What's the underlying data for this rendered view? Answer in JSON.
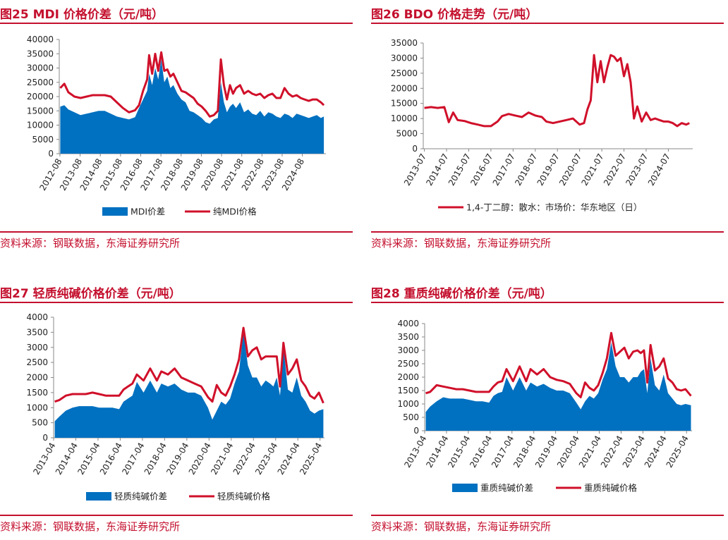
{
  "panels": [
    {
      "id": "p25",
      "title": "图25  MDI 价格价差（元/吨）",
      "source": "资料来源：钢联数据，东海证券研究所"
    },
    {
      "id": "p26",
      "title": "图26  BDO 价格走势（元/吨）",
      "source": "资料来源：钢联数据，东海证券研究所"
    },
    {
      "id": "p27",
      "title": "图27  轻质纯碱价格价差（元/吨）",
      "source": "资料来源：钢联数据，东海证券研究所"
    },
    {
      "id": "p28",
      "title": "图28  重质纯碱价格价差（元/吨）",
      "source": "资料来源：钢联数据，东海证券研究所"
    }
  ],
  "colors": {
    "area": "#0070c0",
    "line": "#d0102a",
    "title": "#c4102e",
    "axis": "#888888"
  },
  "chart_data": [
    {
      "type": "line",
      "title": "图25  MDI 价格价差（元/吨）",
      "x_range": [
        2012.55,
        2025.75
      ],
      "ylim": [
        0,
        40000
      ],
      "yticks": [
        0,
        5000,
        10000,
        15000,
        20000,
        25000,
        30000,
        35000,
        40000
      ],
      "xticks": [
        "2012-08",
        "2013-08",
        "2014-08",
        "2015-08",
        "2016-08",
        "2017-08",
        "2018-08",
        "2019-08",
        "2020-08",
        "2021-08",
        "2022-08",
        "2023-08",
        "2024-08"
      ],
      "x": [
        2012.6,
        2012.8,
        2013.0,
        2013.3,
        2013.6,
        2013.9,
        2014.2,
        2014.5,
        2014.8,
        2015.1,
        2015.4,
        2015.7,
        2016.0,
        2016.3,
        2016.5,
        2016.7,
        2016.9,
        2017.0,
        2017.15,
        2017.3,
        2017.45,
        2017.6,
        2017.75,
        2017.9,
        2018.05,
        2018.2,
        2018.4,
        2018.6,
        2018.8,
        2019.0,
        2019.2,
        2019.4,
        2019.6,
        2019.8,
        2020.0,
        2020.2,
        2020.4,
        2020.55,
        2020.7,
        2020.85,
        2021.0,
        2021.15,
        2021.3,
        2021.5,
        2021.7,
        2021.9,
        2022.1,
        2022.3,
        2022.5,
        2022.7,
        2022.9,
        2023.1,
        2023.3,
        2023.5,
        2023.7,
        2023.9,
        2024.1,
        2024.3,
        2024.5,
        2024.7,
        2024.9,
        2025.1,
        2025.3,
        2025.5,
        2025.65
      ],
      "legend": "bottom",
      "series": [
        {
          "name": "MDI价差",
          "type": "area",
          "values": [
            16500,
            17000,
            15500,
            14500,
            13500,
            14000,
            14500,
            15000,
            15000,
            14000,
            13000,
            12500,
            12000,
            12800,
            16000,
            19000,
            22000,
            28000,
            24000,
            30000,
            26000,
            33000,
            25000,
            27000,
            23000,
            24000,
            21000,
            19000,
            18000,
            15000,
            14500,
            13500,
            12500,
            11000,
            10500,
            12000,
            12500,
            25000,
            18000,
            14500,
            16500,
            17500,
            16000,
            18000,
            14500,
            15500,
            14000,
            13500,
            15000,
            13000,
            14500,
            14000,
            13000,
            12500,
            14000,
            13500,
            12500,
            14000,
            13500,
            13000,
            12500,
            13000,
            13500,
            12500,
            13000
          ]
        },
        {
          "name": "纯MDI价格",
          "type": "line",
          "values": [
            23000,
            24500,
            21500,
            20000,
            19500,
            20000,
            20500,
            20500,
            20500,
            20000,
            18000,
            16000,
            14500,
            15200,
            17000,
            22000,
            26000,
            34500,
            28000,
            35000,
            29000,
            35500,
            29000,
            29500,
            27000,
            28000,
            25000,
            22000,
            21500,
            20500,
            19500,
            17500,
            16500,
            15000,
            13000,
            13500,
            15000,
            33000,
            24000,
            19000,
            24000,
            21000,
            23000,
            24000,
            21000,
            22000,
            21000,
            20500,
            21000,
            19500,
            20500,
            21000,
            19500,
            19500,
            23000,
            21000,
            20000,
            20500,
            19500,
            19000,
            18500,
            19000,
            19000,
            18000,
            17000
          ]
        }
      ]
    },
    {
      "type": "line",
      "title": "图26  BDO 价格走势（元/吨）",
      "x_range": [
        2013.45,
        2025.6
      ],
      "ylim": [
        0,
        35000
      ],
      "yticks": [
        0,
        5000,
        10000,
        15000,
        20000,
        25000,
        30000,
        35000
      ],
      "xticks": [
        "2013-07",
        "2014-07",
        "2015-07",
        "2016-07",
        "2017-07",
        "2018-07",
        "2019-07",
        "2020-07",
        "2021-07",
        "2022-07",
        "2023-07",
        "2024-07"
      ],
      "x": [
        2013.5,
        2013.8,
        2014.1,
        2014.4,
        2014.6,
        2014.8,
        2015.0,
        2015.3,
        2015.6,
        2015.9,
        2016.2,
        2016.5,
        2016.8,
        2017.0,
        2017.3,
        2017.6,
        2017.9,
        2018.2,
        2018.5,
        2018.8,
        2019.0,
        2019.3,
        2019.6,
        2019.9,
        2020.2,
        2020.5,
        2020.7,
        2020.85,
        2021.0,
        2021.15,
        2021.3,
        2021.45,
        2021.6,
        2021.75,
        2021.9,
        2022.05,
        2022.2,
        2022.35,
        2022.5,
        2022.65,
        2022.8,
        2022.95,
        2023.1,
        2023.3,
        2023.5,
        2023.7,
        2023.9,
        2024.1,
        2024.3,
        2024.5,
        2024.7,
        2024.9,
        2025.1,
        2025.3,
        2025.45
      ],
      "legend": "bottom",
      "series": [
        {
          "name": "1,4-丁二醇：散水：市场价：华东地区（日）",
          "type": "line",
          "values": [
            13500,
            13800,
            13500,
            13800,
            8800,
            12000,
            9500,
            9200,
            8500,
            8000,
            7500,
            7500,
            9000,
            10800,
            11500,
            11000,
            10500,
            12000,
            11000,
            10500,
            9000,
            8500,
            9000,
            9500,
            10000,
            8000,
            8500,
            13000,
            16000,
            31000,
            22000,
            29000,
            22000,
            27000,
            31000,
            30500,
            29000,
            30000,
            24000,
            28000,
            22000,
            10000,
            14000,
            9000,
            12000,
            9500,
            10000,
            9500,
            9000,
            9000,
            8500,
            7500,
            8500,
            8000,
            8500
          ]
        }
      ]
    },
    {
      "type": "line",
      "title": "图27  轻质纯碱价格价差（元/吨）",
      "x_range": [
        2013.25,
        2025.45
      ],
      "ylim": [
        0,
        4000
      ],
      "yticks": [
        0,
        500,
        1000,
        1500,
        2000,
        2500,
        3000,
        3500,
        4000
      ],
      "xticks": [
        "2013-04",
        "2014-04",
        "2015-04",
        "2016-04",
        "2017-04",
        "2018-04",
        "2019-04",
        "2020-04",
        "2021-04",
        "2022-04",
        "2023-04",
        "2024-04",
        "2025-04"
      ],
      "x": [
        2013.3,
        2013.5,
        2013.8,
        2014.1,
        2014.4,
        2014.7,
        2015.0,
        2015.3,
        2015.6,
        2015.9,
        2016.2,
        2016.4,
        2016.6,
        2016.8,
        2017.0,
        2017.3,
        2017.6,
        2017.9,
        2018.1,
        2018.4,
        2018.7,
        2019.0,
        2019.3,
        2019.6,
        2019.9,
        2020.2,
        2020.4,
        2020.6,
        2020.8,
        2021.0,
        2021.2,
        2021.4,
        2021.6,
        2021.8,
        2022.0,
        2022.2,
        2022.4,
        2022.6,
        2022.8,
        2023.0,
        2023.15,
        2023.3,
        2023.45,
        2023.6,
        2023.8,
        2024.0,
        2024.2,
        2024.4,
        2024.6,
        2024.8,
        2025.0,
        2025.2,
        2025.4
      ],
      "legend": "bottom",
      "series": [
        {
          "name": "轻质纯碱价差",
          "type": "area",
          "values": [
            550,
            700,
            900,
            1000,
            1050,
            1050,
            1050,
            1000,
            1000,
            1000,
            950,
            1200,
            1300,
            1400,
            1850,
            1500,
            1900,
            1500,
            1800,
            1700,
            1800,
            1600,
            1500,
            1500,
            1400,
            1000,
            600,
            900,
            1200,
            1100,
            1300,
            1800,
            2200,
            3500,
            2400,
            2000,
            2000,
            1700,
            1900,
            1800,
            1700,
            2000,
            1400,
            3000,
            1600,
            1500,
            2000,
            1400,
            1200,
            900,
            800,
            900,
            950
          ]
        },
        {
          "name": "轻质纯碱价格",
          "type": "line",
          "values": [
            1200,
            1250,
            1400,
            1450,
            1450,
            1450,
            1500,
            1450,
            1400,
            1400,
            1400,
            1600,
            1700,
            1800,
            2100,
            1900,
            2300,
            1900,
            2200,
            2100,
            2300,
            2000,
            1900,
            1800,
            1700,
            1350,
            1200,
            1750,
            1500,
            1400,
            1700,
            2100,
            2600,
            3650,
            2700,
            2900,
            3000,
            2600,
            2700,
            2700,
            2700,
            2700,
            1700,
            3150,
            2100,
            2300,
            2600,
            1900,
            1700,
            1400,
            1300,
            1500,
            1150
          ]
        }
      ]
    },
    {
      "type": "line",
      "title": "图28  重质纯碱价格价差（元/吨）",
      "x_range": [
        2013.25,
        2025.5
      ],
      "ylim": [
        0,
        4000
      ],
      "yticks": [
        0,
        500,
        1000,
        1500,
        2000,
        2500,
        3000,
        3500,
        4000
      ],
      "xticks": [
        "2013-04",
        "2014-04",
        "2015-04",
        "2016-04",
        "2017-04",
        "2018-04",
        "2019-04",
        "2020-04",
        "2021-04",
        "2022-04",
        "2023-04",
        "2024-04",
        "2025-04"
      ],
      "x": [
        2013.3,
        2013.5,
        2013.8,
        2014.1,
        2014.4,
        2014.7,
        2015.0,
        2015.3,
        2015.6,
        2015.9,
        2016.2,
        2016.4,
        2016.6,
        2016.8,
        2017.0,
        2017.3,
        2017.6,
        2017.9,
        2018.1,
        2018.4,
        2018.7,
        2019.0,
        2019.3,
        2019.6,
        2019.9,
        2020.2,
        2020.4,
        2020.6,
        2020.8,
        2021.0,
        2021.2,
        2021.4,
        2021.6,
        2021.8,
        2022.0,
        2022.2,
        2022.4,
        2022.6,
        2022.8,
        2023.0,
        2023.15,
        2023.3,
        2023.45,
        2023.6,
        2023.8,
        2024.0,
        2024.2,
        2024.4,
        2024.6,
        2024.8,
        2025.0,
        2025.2,
        2025.45
      ],
      "legend": "bottom",
      "series": [
        {
          "name": "重质纯碱价差",
          "type": "area",
          "values": [
            700,
            900,
            1100,
            1250,
            1200,
            1200,
            1200,
            1150,
            1100,
            1100,
            1050,
            1300,
            1400,
            1450,
            2000,
            1500,
            2000,
            1500,
            1800,
            1650,
            1750,
            1600,
            1500,
            1500,
            1400,
            1050,
            800,
            1100,
            1300,
            1200,
            1400,
            1900,
            2300,
            3300,
            2400,
            2000,
            2000,
            1800,
            2000,
            2000,
            2200,
            2300,
            1400,
            2700,
            1700,
            1500,
            2100,
            1400,
            1200,
            1000,
            950,
            1000,
            950
          ]
        },
        {
          "name": "重质纯碱价格",
          "type": "line",
          "values": [
            1400,
            1450,
            1700,
            1650,
            1600,
            1550,
            1550,
            1500,
            1450,
            1450,
            1450,
            1650,
            1800,
            1850,
            2300,
            1850,
            2400,
            1850,
            2300,
            2100,
            2300,
            2000,
            1900,
            1850,
            1750,
            1400,
            1250,
            1800,
            1600,
            1500,
            1700,
            2150,
            2700,
            3650,
            2800,
            2950,
            3100,
            2700,
            2950,
            3000,
            2900,
            3000,
            1800,
            3200,
            2250,
            2400,
            2700,
            1950,
            1800,
            1550,
            1500,
            1550,
            1300
          ]
        }
      ]
    }
  ]
}
